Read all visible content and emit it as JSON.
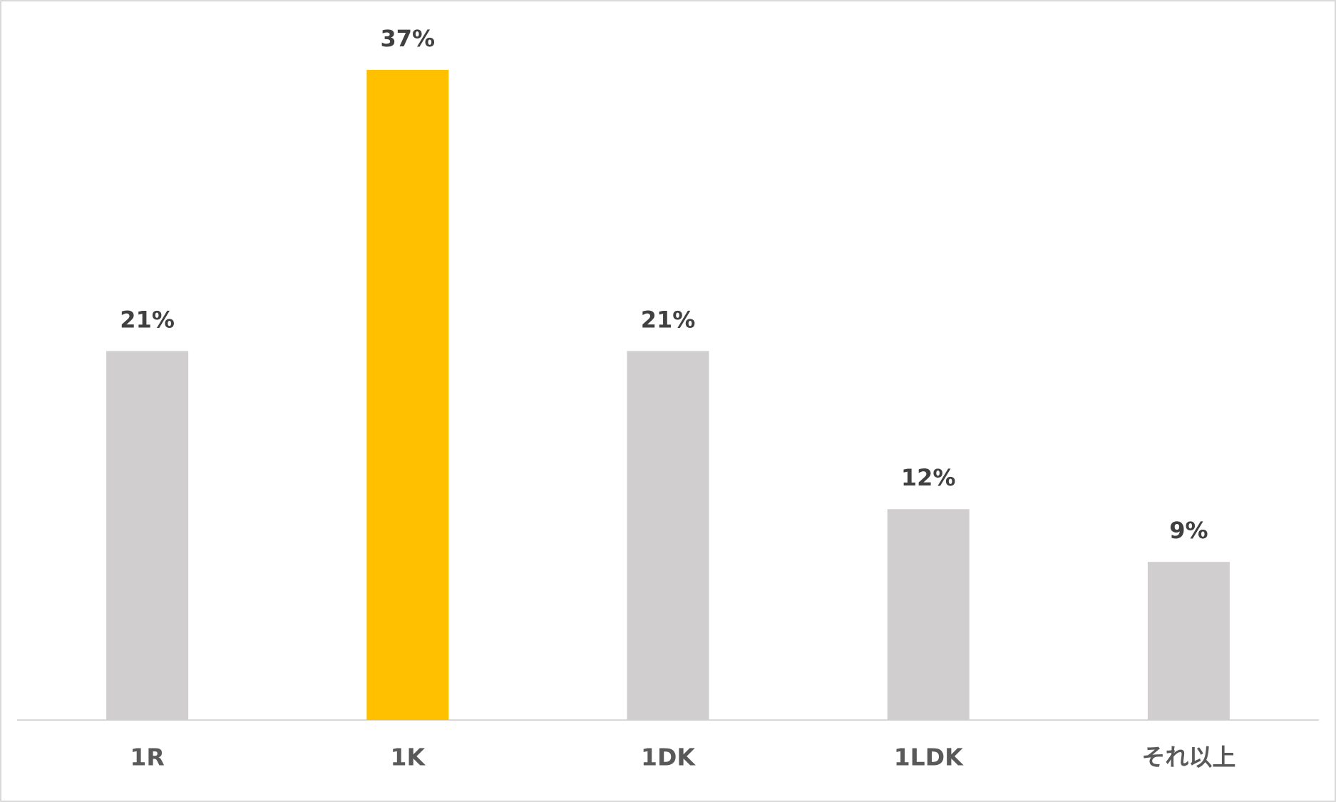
{
  "chart_data": {
    "type": "bar",
    "categories": [
      "1R",
      "1K",
      "1DK",
      "1LDK",
      "それ以上"
    ],
    "values": [
      21,
      37,
      21,
      12,
      9
    ],
    "value_labels": [
      "21%",
      "37%",
      "21%",
      "12%",
      "9%"
    ],
    "colors": [
      "#d0cecf",
      "#ffc000",
      "#d0cecf",
      "#d0cecf",
      "#d0cecf"
    ]
  }
}
